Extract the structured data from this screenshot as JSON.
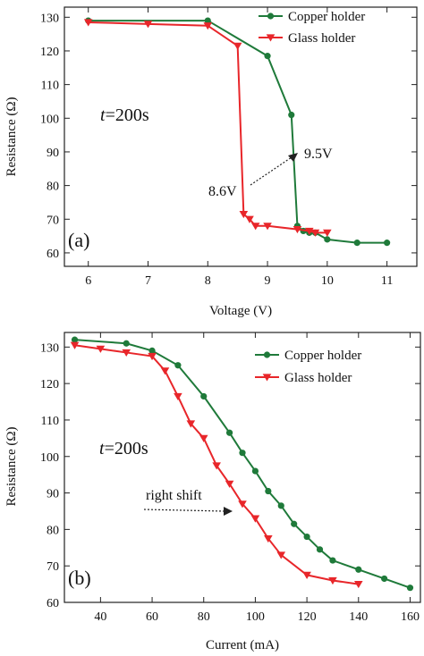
{
  "chart_data": [
    {
      "type": "line",
      "panel_label": "(a)",
      "xlabel": "Voltage (V)",
      "ylabel": "Resistance (Ω)",
      "xlim": [
        5.6,
        11.5
      ],
      "ylim": [
        56,
        133
      ],
      "xticks": [
        6,
        7,
        8,
        9,
        10,
        11
      ],
      "yticks": [
        60,
        70,
        80,
        90,
        100,
        110,
        120,
        130
      ],
      "legend_position": "top-right",
      "series": [
        {
          "name": "Copper holder",
          "color": "#1f7a3a",
          "marker": "circle",
          "x": [
            6,
            8,
            9,
            9.4,
            9.5,
            9.6,
            9.7,
            9.8,
            10,
            10.5,
            11
          ],
          "y": [
            129,
            129,
            118.5,
            101,
            68,
            66.5,
            66,
            66,
            64,
            63,
            63
          ]
        },
        {
          "name": "Glass holder",
          "color": "#e8262a",
          "marker": "triangle-down",
          "x": [
            6,
            7,
            8,
            8.5,
            8.6,
            8.7,
            8.8,
            9,
            9.5,
            9.7,
            9.8,
            10
          ],
          "y": [
            128.5,
            128,
            127.5,
            121.5,
            71.5,
            70,
            68,
            68,
            67,
            66.5,
            66,
            66
          ]
        }
      ],
      "annotations": {
        "time": {
          "italic": "t",
          "rest": "=200s"
        },
        "left_label": "8.6V",
        "right_label": "9.5V"
      }
    },
    {
      "type": "line",
      "panel_label": "(b)",
      "xlabel": "Current (mA)",
      "ylabel": "Resistance (Ω)",
      "xlim": [
        26,
        164
      ],
      "ylim": [
        60,
        134
      ],
      "xticks": [
        40,
        60,
        80,
        100,
        120,
        140,
        160
      ],
      "yticks": [
        60,
        70,
        80,
        90,
        100,
        110,
        120,
        130
      ],
      "legend_position": "top-right",
      "series": [
        {
          "name": "Copper holder",
          "color": "#1f7a3a",
          "marker": "circle",
          "x": [
            30,
            50,
            60,
            70,
            80,
            90,
            95,
            100,
            105,
            110,
            115,
            120,
            125,
            130,
            140,
            150,
            160
          ],
          "y": [
            132,
            131,
            129,
            125,
            116.5,
            106.5,
            101,
            96,
            90.5,
            86.5,
            81.5,
            78,
            74.5,
            71.5,
            69,
            66.5,
            64
          ]
        },
        {
          "name": "Glass holder",
          "color": "#e8262a",
          "marker": "triangle-down",
          "x": [
            30,
            40,
            50,
            60,
            65,
            70,
            75,
            80,
            85,
            90,
            95,
            100,
            105,
            110,
            120,
            130,
            140
          ],
          "y": [
            130.5,
            129.5,
            128.5,
            127.5,
            123.5,
            116.5,
            109,
            105,
            97.5,
            92.5,
            87,
            83,
            77.5,
            73,
            67.5,
            66,
            65
          ]
        }
      ],
      "annotations": {
        "time": {
          "italic": "t",
          "rest": "=200s"
        },
        "shift_label": "right shift"
      }
    }
  ]
}
